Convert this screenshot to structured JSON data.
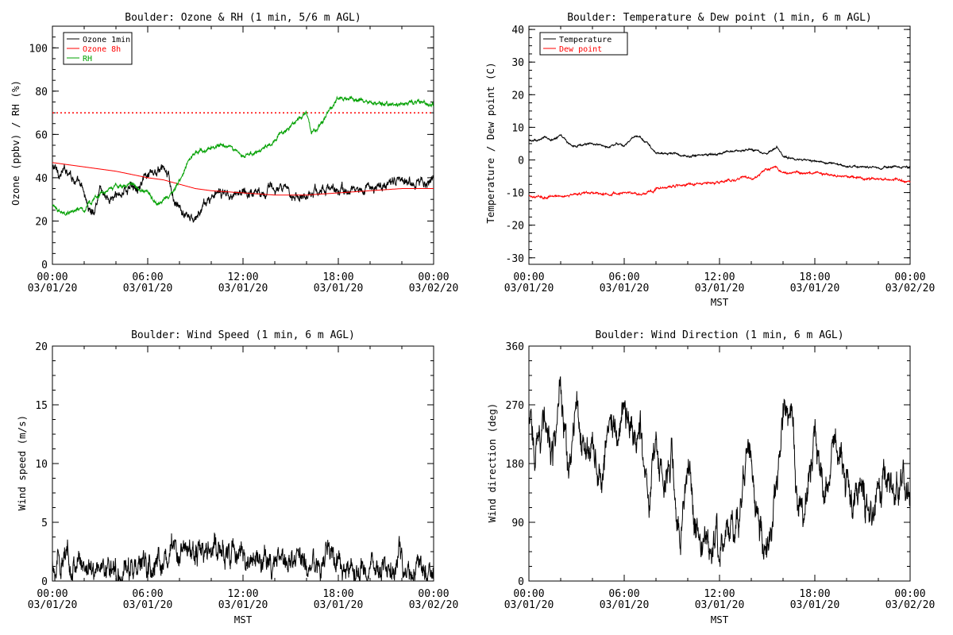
{
  "chart_data": [
    {
      "type": "line",
      "title": "Boulder: Ozone & RH (1 min, 5/6 m AGL)",
      "ylabel": "Ozone (ppbv) / RH (%)",
      "xlabel": "",
      "ylim": [
        0,
        110
      ],
      "yticks": [
        0,
        20,
        40,
        60,
        80,
        100
      ],
      "xlim_hours": [
        0,
        24
      ],
      "xticks": [
        {
          "time": "00:00",
          "date": "03/01/20"
        },
        {
          "time": "06:00",
          "date": "03/01/20"
        },
        {
          "time": "12:00",
          "date": "03/01/20"
        },
        {
          "time": "18:00",
          "date": "03/01/20"
        },
        {
          "time": "00:00",
          "date": "03/02/20"
        }
      ],
      "legend_position": "top-left",
      "reference_line": {
        "y": 70,
        "color": "#ff0000",
        "style": "dotted"
      },
      "series": [
        {
          "name": "Ozone 1min",
          "color": "#000000",
          "noise": 2.2,
          "x": [
            0,
            0.5,
            1,
            1.5,
            2,
            2.3,
            2.6,
            3,
            3.5,
            4,
            4.5,
            5,
            5.5,
            6,
            6.5,
            7,
            7.3,
            7.6,
            8,
            8.5,
            9,
            9.5,
            10,
            11,
            12,
            13,
            14,
            15,
            15.5,
            16,
            16.5,
            17,
            18,
            19,
            20,
            21,
            22,
            23,
            24
          ],
          "y": [
            45,
            42,
            44,
            38,
            33,
            25,
            24,
            36,
            30,
            31,
            34,
            36,
            38,
            40,
            42,
            44,
            40,
            30,
            25,
            22,
            20,
            27,
            31,
            33,
            33,
            34,
            35,
            33,
            32,
            33,
            34,
            35,
            34,
            34,
            35,
            37,
            38,
            39,
            39
          ]
        },
        {
          "name": "Ozone 8h",
          "color": "#ff0000",
          "noise": 0,
          "x": [
            0,
            2,
            4,
            6,
            7,
            8,
            9,
            10,
            12,
            14,
            16,
            18,
            20,
            22,
            24
          ],
          "y": [
            47,
            45,
            43,
            40,
            39,
            37,
            35,
            34,
            33,
            32,
            32,
            33,
            34,
            35,
            35
          ]
        },
        {
          "name": "RH",
          "color": "#00a000",
          "noise": 1.0,
          "x": [
            0,
            0.5,
            1,
            2,
            3,
            4,
            5,
            6,
            6.5,
            7,
            7.5,
            8,
            8.5,
            9,
            10,
            11,
            12,
            13,
            14,
            15,
            15.5,
            16,
            16.3,
            16.6,
            17,
            17.5,
            18,
            19,
            20,
            21,
            22,
            23,
            24
          ],
          "y": [
            27,
            24,
            24,
            25,
            33,
            36,
            37,
            33,
            28,
            30,
            33,
            38,
            47,
            52,
            54,
            55,
            50,
            52,
            58,
            64,
            68,
            70,
            60,
            62,
            66,
            72,
            77,
            76,
            75,
            74,
            74,
            75,
            73
          ]
        }
      ]
    },
    {
      "type": "line",
      "title": "Boulder: Temperature & Dew point (1 min, 6 m AGL)",
      "ylabel": "Temperature / Dew point (C)",
      "xlabel": "MST",
      "ylim": [
        -32,
        41
      ],
      "yticks": [
        -30,
        -20,
        -10,
        0,
        10,
        20,
        30,
        40
      ],
      "xlim_hours": [
        0,
        24
      ],
      "xticks": [
        {
          "time": "00:00",
          "date": "03/01/20"
        },
        {
          "time": "06:00",
          "date": "03/01/20"
        },
        {
          "time": "12:00",
          "date": "03/01/20"
        },
        {
          "time": "18:00",
          "date": "03/01/20"
        },
        {
          "time": "00:00",
          "date": "03/02/20"
        }
      ],
      "legend_position": "top-left",
      "series": [
        {
          "name": "Temperature",
          "color": "#000000",
          "noise": 0.3,
          "x": [
            0,
            0.5,
            1,
            1.5,
            2,
            2.5,
            3,
            3.5,
            4,
            5,
            5.5,
            6,
            6.5,
            7,
            7.5,
            8,
            9,
            10,
            11,
            12,
            13,
            14,
            15,
            15.3,
            15.6,
            16,
            17,
            18,
            19,
            20,
            21,
            22,
            23,
            24
          ],
          "y": [
            6,
            6,
            7,
            6,
            8,
            5,
            4,
            5,
            5,
            4,
            5,
            4,
            7,
            7,
            5,
            2,
            2,
            1,
            1.5,
            2,
            3,
            3,
            2,
            3,
            4,
            1,
            0,
            -0.5,
            -1,
            -2,
            -2,
            -2.5,
            -2,
            -2
          ]
        },
        {
          "name": "Dew point",
          "color": "#ff0000",
          "noise": 0.35,
          "x": [
            0,
            1,
            2,
            3,
            4,
            5,
            6,
            7,
            8,
            9,
            10,
            11,
            12,
            13,
            13.5,
            14,
            15,
            15.5,
            16,
            17,
            18,
            19,
            20,
            21,
            22,
            23,
            24
          ],
          "y": [
            -11,
            -11.5,
            -11,
            -10.5,
            -10,
            -10.5,
            -10,
            -10.5,
            -9,
            -8,
            -7.5,
            -7,
            -7,
            -6,
            -5,
            -6,
            -3,
            -2,
            -4,
            -4,
            -4,
            -4.5,
            -5,
            -5.5,
            -6,
            -6,
            -6.5
          ]
        }
      ]
    },
    {
      "type": "line",
      "title": "Boulder: Wind Speed (1 min, 6 m AGL)",
      "ylabel": "Wind speed (m/s)",
      "xlabel": "MST",
      "ylim": [
        0,
        20
      ],
      "yticks": [
        0,
        5,
        10,
        15,
        20
      ],
      "xlim_hours": [
        0,
        24
      ],
      "xticks": [
        {
          "time": "00:00",
          "date": "03/01/20"
        },
        {
          "time": "06:00",
          "date": "03/01/20"
        },
        {
          "time": "12:00",
          "date": "03/01/20"
        },
        {
          "time": "18:00",
          "date": "03/01/20"
        },
        {
          "time": "00:00",
          "date": "03/02/20"
        }
      ],
      "series": [
        {
          "name": "",
          "color": "#000000",
          "noise": 1.1,
          "x": [
            0,
            1,
            2,
            3,
            4,
            5,
            6,
            7,
            7.8,
            8,
            9,
            10,
            11,
            12,
            13,
            14,
            15,
            16,
            17,
            17.3,
            17.5,
            18,
            19,
            20,
            21,
            22,
            23,
            24
          ],
          "y": [
            1.5,
            1.8,
            1.5,
            1.2,
            1,
            1,
            1.2,
            1.5,
            3,
            2.5,
            2.5,
            2.8,
            2.5,
            2,
            1.8,
            1.5,
            1.5,
            1.2,
            1.5,
            3,
            2,
            1.2,
            1.2,
            1,
            1.2,
            1.8,
            1.5,
            1
          ]
        }
      ]
    },
    {
      "type": "line",
      "title": "Boulder: Wind Direction (1 min, 6 m AGL)",
      "ylabel": "Wind direction (deg)",
      "xlabel": "MST",
      "ylim": [
        0,
        360
      ],
      "yticks": [
        0,
        90,
        180,
        270,
        360
      ],
      "xlim_hours": [
        0,
        24
      ],
      "xticks": [
        {
          "time": "00:00",
          "date": "03/01/20"
        },
        {
          "time": "06:00",
          "date": "03/01/20"
        },
        {
          "time": "12:00",
          "date": "03/01/20"
        },
        {
          "time": "18:00",
          "date": "03/01/20"
        },
        {
          "time": "00:00",
          "date": "03/02/20"
        }
      ],
      "series": [
        {
          "name": "",
          "color": "#000000",
          "noise": 28,
          "x": [
            0,
            0.5,
            1,
            1.5,
            2,
            2.5,
            3,
            3.5,
            4,
            4.5,
            5,
            5.5,
            6,
            6.5,
            7,
            7.5,
            8,
            8.5,
            9,
            9.5,
            10,
            10.5,
            11,
            11.5,
            12,
            12.5,
            13,
            13.5,
            14,
            14.5,
            15,
            15.5,
            16,
            16.5,
            17,
            17.5,
            18,
            18.5,
            19,
            19.5,
            20,
            20.5,
            21,
            21.5,
            22,
            22.5,
            23,
            23.5,
            24
          ],
          "y": [
            240,
            210,
            250,
            180,
            300,
            140,
            260,
            200,
            220,
            150,
            250,
            230,
            260,
            220,
            250,
            100,
            240,
            120,
            200,
            60,
            180,
            80,
            50,
            60,
            60,
            70,
            80,
            150,
            200,
            80,
            50,
            120,
            270,
            250,
            100,
            120,
            230,
            150,
            160,
            200,
            150,
            130,
            140,
            110,
            130,
            140,
            150,
            140,
            140
          ]
        }
      ]
    }
  ]
}
